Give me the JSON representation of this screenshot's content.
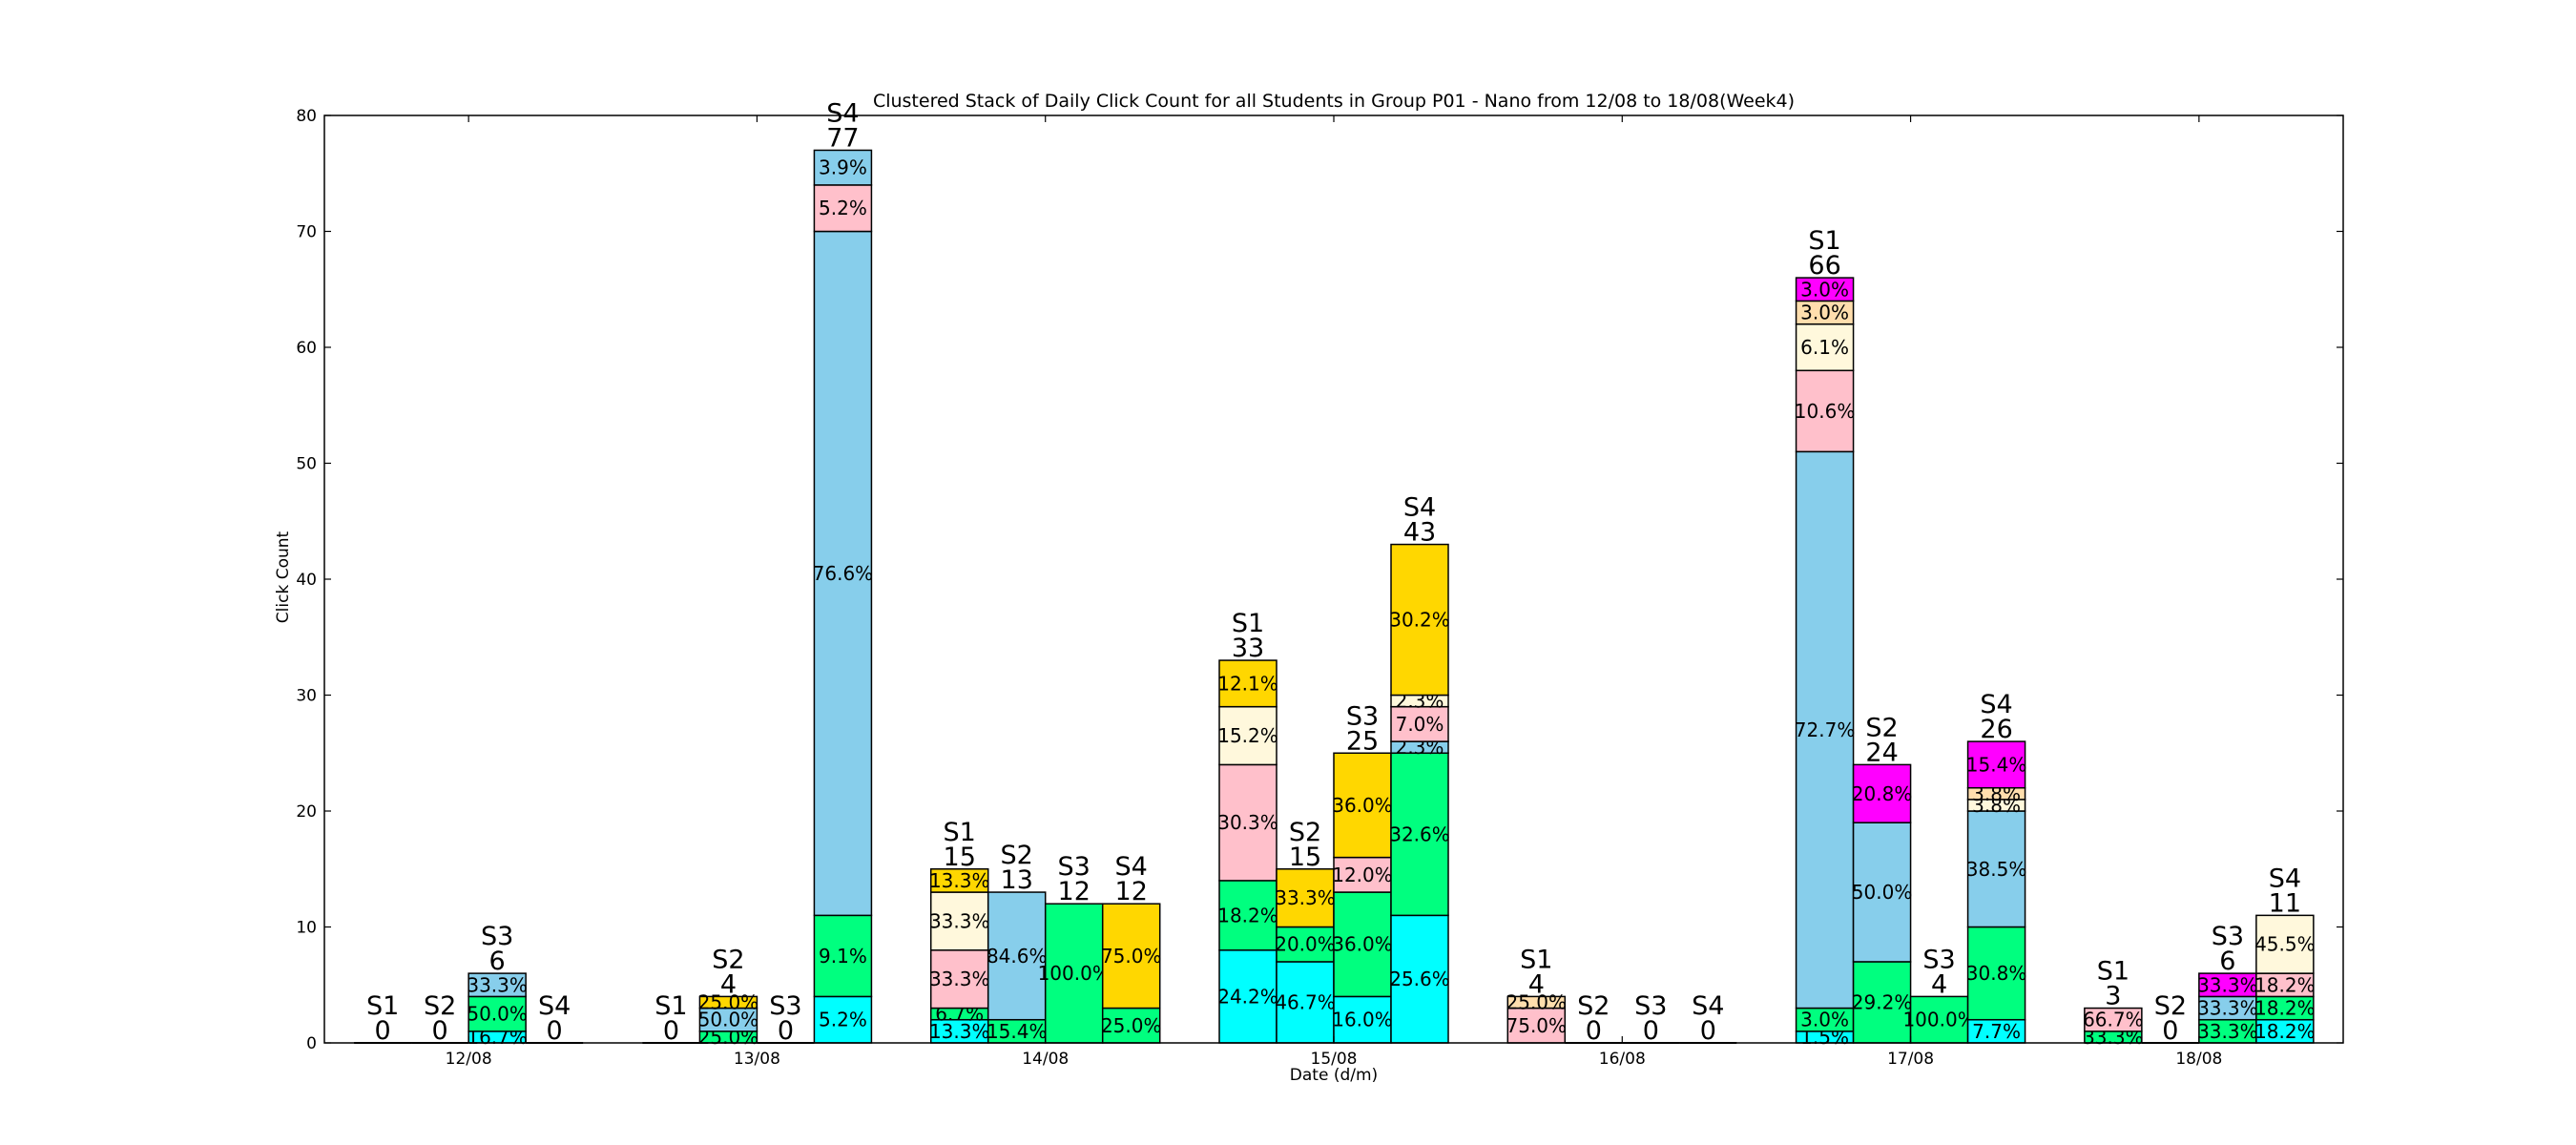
{
  "chart_data": {
    "type": "bar",
    "stacked": true,
    "clustered": true,
    "title": "Clustered Stack of Daily Click Count for all Students in Group P01 - Nano from 12/08 to 18/08(Week4)",
    "xlabel": "Date (d/m)",
    "ylabel": "Click Count",
    "ylim": [
      0,
      80
    ],
    "yticks": [
      0,
      10,
      20,
      30,
      40,
      50,
      60,
      70,
      80
    ],
    "categories": [
      "12/08",
      "13/08",
      "14/08",
      "15/08",
      "16/08",
      "17/08",
      "18/08"
    ],
    "students": [
      "S1",
      "S2",
      "S3",
      "S4"
    ],
    "segment_colors": [
      "#00FFFF",
      "#00FF7F",
      "#87CEEB",
      "#FFC0CB",
      "#FFF8DC",
      "#FFDEAD",
      "#FFD700",
      "#FF00FF"
    ],
    "bars": [
      {
        "day": 0,
        "student": "S1",
        "total": 0,
        "segments": []
      },
      {
        "day": 0,
        "student": "S2",
        "total": 0,
        "segments": []
      },
      {
        "day": 0,
        "student": "S3",
        "total": 6,
        "segments": [
          {
            "c": 0,
            "v": 1,
            "label": "16.7%"
          },
          {
            "c": 1,
            "v": 3,
            "label": "50.0%"
          },
          {
            "c": 2,
            "v": 2,
            "label": "33.3%"
          }
        ]
      },
      {
        "day": 0,
        "student": "S4",
        "total": 0,
        "segments": []
      },
      {
        "day": 1,
        "student": "S1",
        "total": 0,
        "segments": []
      },
      {
        "day": 1,
        "student": "S2",
        "total": 4,
        "segments": [
          {
            "c": 1,
            "v": 1,
            "label": "25.0%"
          },
          {
            "c": 2,
            "v": 2,
            "label": "50.0%"
          },
          {
            "c": 6,
            "v": 1,
            "label": "25.0%"
          }
        ]
      },
      {
        "day": 1,
        "student": "S3",
        "total": 0,
        "segments": []
      },
      {
        "day": 1,
        "student": "S4",
        "total": 77,
        "segments": [
          {
            "c": 0,
            "v": 4,
            "label": "5.2%"
          },
          {
            "c": 1,
            "v": 7,
            "label": "9.1%"
          },
          {
            "c": 2,
            "v": 59,
            "label": "76.6%"
          },
          {
            "c": 3,
            "v": 4,
            "label": "5.2%"
          },
          {
            "c": 2,
            "v": 3,
            "label": "3.9%"
          }
        ]
      },
      {
        "day": 2,
        "student": "S1",
        "total": 15,
        "segments": [
          {
            "c": 0,
            "v": 2,
            "label": "13.3%"
          },
          {
            "c": 1,
            "v": 1,
            "label": "6.7%"
          },
          {
            "c": 3,
            "v": 5,
            "label": "33.3%"
          },
          {
            "c": 4,
            "v": 5,
            "label": "33.3%"
          },
          {
            "c": 6,
            "v": 2,
            "label": "13.3%"
          }
        ]
      },
      {
        "day": 2,
        "student": "S2",
        "total": 13,
        "segments": [
          {
            "c": 1,
            "v": 2,
            "label": "15.4%"
          },
          {
            "c": 2,
            "v": 11,
            "label": "84.6%"
          }
        ]
      },
      {
        "day": 2,
        "student": "S3",
        "total": 12,
        "segments": [
          {
            "c": 1,
            "v": 12,
            "label": "100.0%"
          }
        ]
      },
      {
        "day": 2,
        "student": "S4",
        "total": 12,
        "segments": [
          {
            "c": 1,
            "v": 3,
            "label": "25.0%"
          },
          {
            "c": 6,
            "v": 9,
            "label": "75.0%"
          }
        ]
      },
      {
        "day": 3,
        "student": "S1",
        "total": 33,
        "segments": [
          {
            "c": 0,
            "v": 8,
            "label": "24.2%"
          },
          {
            "c": 1,
            "v": 6,
            "label": "18.2%"
          },
          {
            "c": 3,
            "v": 10,
            "label": "30.3%"
          },
          {
            "c": 4,
            "v": 5,
            "label": "15.2%"
          },
          {
            "c": 6,
            "v": 4,
            "label": "12.1%"
          }
        ]
      },
      {
        "day": 3,
        "student": "S2",
        "total": 15,
        "segments": [
          {
            "c": 0,
            "v": 7,
            "label": "46.7%"
          },
          {
            "c": 1,
            "v": 3,
            "label": "20.0%"
          },
          {
            "c": 6,
            "v": 5,
            "label": "33.3%"
          }
        ]
      },
      {
        "day": 3,
        "student": "S3",
        "total": 25,
        "segments": [
          {
            "c": 0,
            "v": 4,
            "label": "16.0%"
          },
          {
            "c": 1,
            "v": 9,
            "label": "36.0%"
          },
          {
            "c": 3,
            "v": 3,
            "label": "12.0%"
          },
          {
            "c": 6,
            "v": 9,
            "label": "36.0%"
          }
        ]
      },
      {
        "day": 3,
        "student": "S4",
        "total": 43,
        "segments": [
          {
            "c": 0,
            "v": 11,
            "label": "25.6%"
          },
          {
            "c": 1,
            "v": 14,
            "label": "32.6%"
          },
          {
            "c": 2,
            "v": 1,
            "label": "2.3%"
          },
          {
            "c": 3,
            "v": 3,
            "label": "7.0%"
          },
          {
            "c": 4,
            "v": 1,
            "label": "2.3%"
          },
          {
            "c": 6,
            "v": 13,
            "label": "30.2%"
          }
        ]
      },
      {
        "day": 4,
        "student": "S1",
        "total": 4,
        "segments": [
          {
            "c": 3,
            "v": 3,
            "label": "75.0%"
          },
          {
            "c": 5,
            "v": 1,
            "label": "25.0%"
          }
        ]
      },
      {
        "day": 4,
        "student": "S2",
        "total": 0,
        "segments": []
      },
      {
        "day": 4,
        "student": "S3",
        "total": 0,
        "segments": []
      },
      {
        "day": 4,
        "student": "S4",
        "total": 0,
        "segments": []
      },
      {
        "day": 5,
        "student": "S1",
        "total": 66,
        "segments": [
          {
            "c": 0,
            "v": 1,
            "label": "1.5%"
          },
          {
            "c": 1,
            "v": 2,
            "label": "3.0%"
          },
          {
            "c": 2,
            "v": 48,
            "label": "72.7%"
          },
          {
            "c": 3,
            "v": 7,
            "label": "10.6%"
          },
          {
            "c": 4,
            "v": 4,
            "label": "6.1%"
          },
          {
            "c": 5,
            "v": 2,
            "label": "3.0%"
          },
          {
            "c": 7,
            "v": 2,
            "label": "3.0%"
          }
        ]
      },
      {
        "day": 5,
        "student": "S2",
        "total": 24,
        "segments": [
          {
            "c": 1,
            "v": 7,
            "label": "29.2%"
          },
          {
            "c": 2,
            "v": 12,
            "label": "50.0%"
          },
          {
            "c": 7,
            "v": 5,
            "label": "20.8%"
          }
        ]
      },
      {
        "day": 5,
        "student": "S3",
        "total": 4,
        "segments": [
          {
            "c": 1,
            "v": 4,
            "label": "100.0%"
          }
        ]
      },
      {
        "day": 5,
        "student": "S4",
        "total": 26,
        "segments": [
          {
            "c": 0,
            "v": 2,
            "label": "7.7%"
          },
          {
            "c": 1,
            "v": 8,
            "label": "30.8%"
          },
          {
            "c": 2,
            "v": 10,
            "label": "38.5%"
          },
          {
            "c": 4,
            "v": 1,
            "label": "3.8%"
          },
          {
            "c": 5,
            "v": 1,
            "label": "3.8%"
          },
          {
            "c": 7,
            "v": 4,
            "label": "15.4%"
          }
        ]
      },
      {
        "day": 6,
        "student": "S1",
        "total": 3,
        "segments": [
          {
            "c": 1,
            "v": 1,
            "label": "33.3%"
          },
          {
            "c": 3,
            "v": 2,
            "label": "66.7%"
          }
        ]
      },
      {
        "day": 6,
        "student": "S2",
        "total": 0,
        "segments": []
      },
      {
        "day": 6,
        "student": "S3",
        "total": 6,
        "segments": [
          {
            "c": 1,
            "v": 2,
            "label": "33.3%"
          },
          {
            "c": 2,
            "v": 2,
            "label": "33.3%"
          },
          {
            "c": 7,
            "v": 2,
            "label": "33.3%"
          }
        ]
      },
      {
        "day": 6,
        "student": "S4",
        "total": 11,
        "segments": [
          {
            "c": 0,
            "v": 2,
            "label": "18.2%"
          },
          {
            "c": 1,
            "v": 2,
            "label": "18.2%"
          },
          {
            "c": 3,
            "v": 2,
            "label": "18.2%"
          },
          {
            "c": 4,
            "v": 5,
            "label": "45.5%"
          }
        ]
      }
    ]
  }
}
